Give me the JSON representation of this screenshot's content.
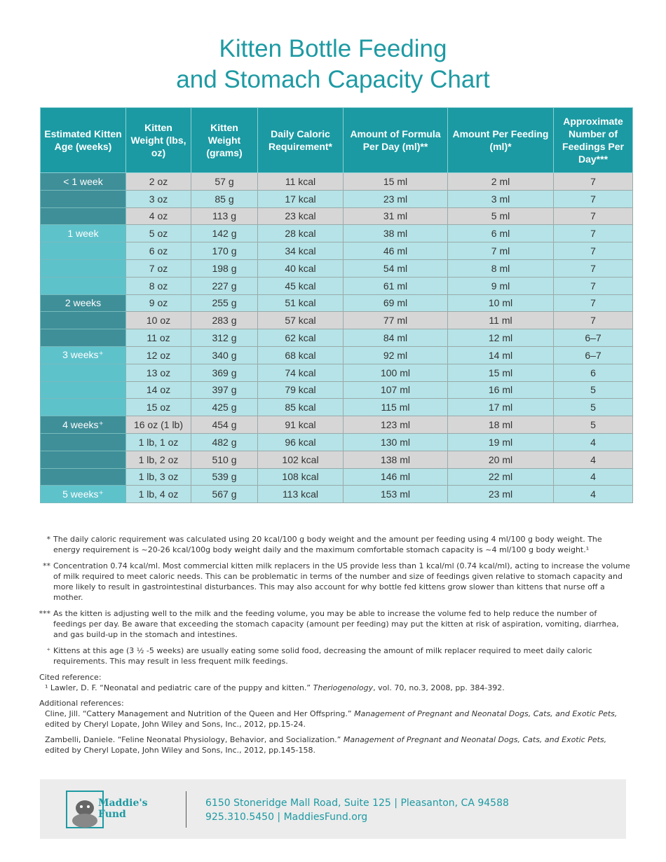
{
  "title": {
    "line1": "Kitten Bottle Feeding",
    "line2": "and Stomach Capacity Chart"
  },
  "table": {
    "headers": [
      "Estimated Kitten Age (weeks)",
      "Kitten Weight (lbs, oz)",
      "Kitten Weight (grams)",
      "Daily Caloric Requirement*",
      "Amount of Formula Per Day (ml)**",
      "Amount Per Feeding (ml)*",
      "Approximate Number of Feedings Per Day***"
    ],
    "rows": [
      [
        "< 1 week",
        "2 oz",
        "57 g",
        "11 kcal",
        "15 ml",
        "2 ml",
        "7"
      ],
      [
        null,
        "3 oz",
        "85 g",
        "17 kcal",
        "23 ml",
        "3 ml",
        "7"
      ],
      [
        null,
        "4 oz",
        "113 g",
        "23 kcal",
        "31 ml",
        "5 ml",
        "7"
      ],
      [
        "1 week",
        "5 oz",
        "142 g",
        "28 kcal",
        "38 ml",
        "6 ml",
        "7"
      ],
      [
        null,
        "6 oz",
        "170 g",
        "34 kcal",
        "46 ml",
        "7 ml",
        "7"
      ],
      [
        null,
        "7 oz",
        "198 g",
        "40 kcal",
        "54 ml",
        "8 ml",
        "7"
      ],
      [
        null,
        "8 oz",
        "227 g",
        "45 kcal",
        "61 ml",
        "9 ml",
        "7"
      ],
      [
        "2 weeks",
        "9 oz",
        "255 g",
        "51 kcal",
        "69 ml",
        "10 ml",
        "7"
      ],
      [
        null,
        "10 oz",
        "283 g",
        "57 kcal",
        "77 ml",
        "11 ml",
        "7"
      ],
      [
        null,
        "11 oz",
        "312 g",
        "62 kcal",
        "84 ml",
        "12 ml",
        "6–7"
      ],
      [
        "3 weeks⁺",
        "12 oz",
        "340 g",
        "68 kcal",
        "92 ml",
        "14 ml",
        "6–7"
      ],
      [
        null,
        "13 oz",
        "369 g",
        "74 kcal",
        "100 ml",
        "15 ml",
        "6"
      ],
      [
        null,
        "14 oz",
        "397 g",
        "79 kcal",
        "107 ml",
        "16 ml",
        "5"
      ],
      [
        null,
        "15 oz",
        "425 g",
        "85 kcal",
        "115 ml",
        "17 ml",
        "5"
      ],
      [
        "4 weeks⁺",
        "16 oz (1 lb)",
        "454 g",
        "91 kcal",
        "123 ml",
        "18 ml",
        "5"
      ],
      [
        null,
        "1 lb, 1 oz",
        "482 g",
        "96 kcal",
        "130 ml",
        "19 ml",
        "4"
      ],
      [
        null,
        "1 lb, 2 oz",
        "510 g",
        "102 kcal",
        "138 ml",
        "20 ml",
        "4"
      ],
      [
        null,
        "1 lb, 3 oz",
        "539 g",
        "108 kcal",
        "146 ml",
        "22 ml",
        "4"
      ],
      [
        "5 weeks⁺",
        "1 lb, 4 oz",
        "567 g",
        "113 kcal",
        "153 ml",
        "23 ml",
        "4"
      ]
    ]
  },
  "notes": [
    {
      "marker": "*",
      "text": "The daily caloric requirement was calculated using 20 kcal/100 g body weight and the amount per feeding using 4 ml/100 g body weight. The energy requirement is ~20-26 kcal/100g body weight daily and the maximum comfortable stomach capacity is ~4 ml/100 g body weight.¹"
    },
    {
      "marker": "**",
      "text": "Concentration 0.74 kcal/ml. Most commercial kitten milk replacers in the US provide less than 1 kcal/ml (0.74 kcal/ml), acting to increase the volume of milk required to meet caloric needs. This can be problematic in terms of the number and size of feedings given relative to stomach capacity and more likely to result in gastrointestinal disturbances. This may also account for why bottle fed kittens grow slower than kittens that nurse off a mother."
    },
    {
      "marker": "***",
      "text": "As the kitten is adjusting well to the milk and the feeding volume, you may be able to increase the volume fed to help reduce the number of feedings per day. Be aware that exceeding the stomach capacity (amount per feeding) may put the kitten at risk of aspiration, vomiting, diarrhea, and gas build-up in the stomach and intestines."
    },
    {
      "marker": "⁺",
      "text": "Kittens at this age (3 ½ -5 weeks) are usually eating some solid food, decreasing the amount of milk replacer required to meet daily caloric requirements. This may result in less frequent milk feedings."
    }
  ],
  "cited": {
    "heading": "Cited reference:",
    "refs": [
      {
        "before": "¹ Lawler, D. F. “Neonatal and pediatric care of the puppy and kitten.” ",
        "title": "Theriogenology",
        "after": ", vol. 70, no.3, 2008, pp. 384-392."
      }
    ]
  },
  "additional": {
    "heading": "Additional references:",
    "refs": [
      {
        "before": "Cline, Jill. “Cattery Management and Nutrition of the Queen and Her Offspring.” ",
        "title": "Management of Pregnant and Neonatal Dogs, Cats, and Exotic Pets,",
        "after": " edited by Cheryl Lopate, John Wiley and Sons, Inc., 2012, pp.15-24."
      },
      {
        "before": "Zambelli, Daniele. “Feline Neonatal Physiology, Behavior, and Socialization.” ",
        "title": "Management of Pregnant and Neonatal Dogs, Cats, and Exotic Pets,",
        "after": " edited by Cheryl Lopate, John Wiley and Sons, Inc., 2012, pp.145-158."
      }
    ]
  },
  "footer": {
    "logo_line1": "Maddie's",
    "logo_line2": "Fund",
    "address": "6150 Stoneridge Mall Road, Suite 125 | Pleasanton, CA 94588",
    "contact": "925.310.5450 |  MaddiesFund.org"
  }
}
